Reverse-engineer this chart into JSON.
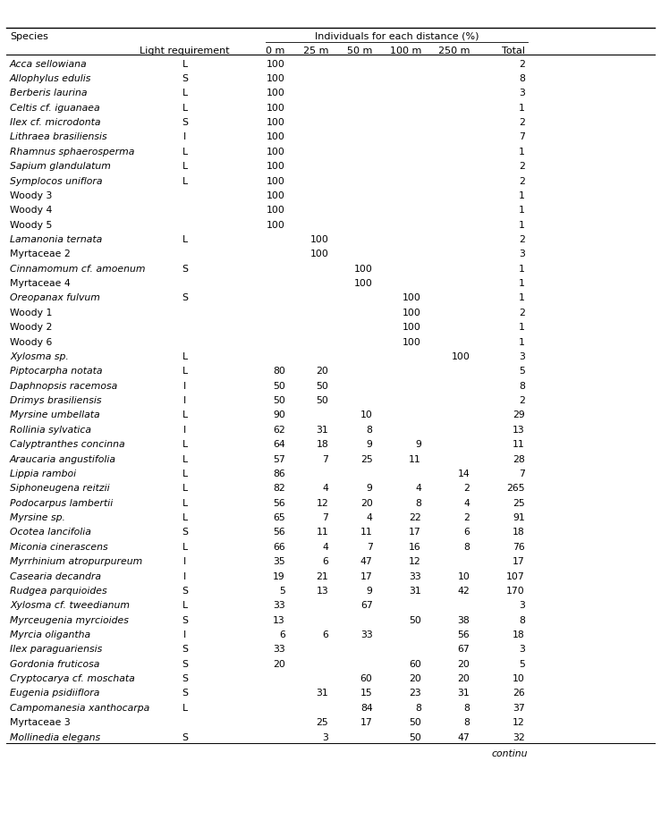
{
  "rows": [
    [
      "Acca sellowiana",
      "L",
      "100",
      "",
      "",
      "",
      "",
      "2"
    ],
    [
      "Allophylus edulis",
      "S",
      "100",
      "",
      "",
      "",
      "",
      "8"
    ],
    [
      "Berberis laurina",
      "L",
      "100",
      "",
      "",
      "",
      "",
      "3"
    ],
    [
      "Celtis cf. iguanaea",
      "L",
      "100",
      "",
      "",
      "",
      "",
      "1"
    ],
    [
      "Ilex cf. microdonta",
      "S",
      "100",
      "",
      "",
      "",
      "",
      "2"
    ],
    [
      "Lithraea brasiliensis",
      "I",
      "100",
      "",
      "",
      "",
      "",
      "7"
    ],
    [
      "Rhamnus sphaerosperma",
      "L",
      "100",
      "",
      "",
      "",
      "",
      "1"
    ],
    [
      "Sapium glandulatum",
      "L",
      "100",
      "",
      "",
      "",
      "",
      "2"
    ],
    [
      "Symplocos uniflora",
      "L",
      "100",
      "",
      "",
      "",
      "",
      "2"
    ],
    [
      "Woody 3",
      "",
      "100",
      "",
      "",
      "",
      "",
      "1"
    ],
    [
      "Woody 4",
      "",
      "100",
      "",
      "",
      "",
      "",
      "1"
    ],
    [
      "Woody 5",
      "",
      "100",
      "",
      "",
      "",
      "",
      "1"
    ],
    [
      "Lamanonia ternata",
      "L",
      "",
      "100",
      "",
      "",
      "",
      "2"
    ],
    [
      "Myrtaceae 2",
      "",
      "",
      "100",
      "",
      "",
      "",
      "3"
    ],
    [
      "Cinnamomum cf. amoenum",
      "S",
      "",
      "",
      "100",
      "",
      "",
      "1"
    ],
    [
      "Myrtaceae 4",
      "",
      "",
      "",
      "100",
      "",
      "",
      "1"
    ],
    [
      "Oreopanax fulvum",
      "S",
      "",
      "",
      "",
      "100",
      "",
      "1"
    ],
    [
      "Woody 1",
      "",
      "",
      "",
      "",
      "100",
      "",
      "2"
    ],
    [
      "Woody 2",
      "",
      "",
      "",
      "",
      "100",
      "",
      "1"
    ],
    [
      "Woody 6",
      "",
      "",
      "",
      "",
      "100",
      "",
      "1"
    ],
    [
      "Xylosma sp.",
      "L",
      "",
      "",
      "",
      "",
      "100",
      "3"
    ],
    [
      "Piptocarpha notata",
      "L",
      "80",
      "20",
      "",
      "",
      "",
      "5"
    ],
    [
      "Daphnopsis racemosa",
      "I",
      "50",
      "50",
      "",
      "",
      "",
      "8"
    ],
    [
      "Drimys brasiliensis",
      "I",
      "50",
      "50",
      "",
      "",
      "",
      "2"
    ],
    [
      "Myrsine umbellata",
      "L",
      "90",
      "",
      "10",
      "",
      "",
      "29"
    ],
    [
      "Rollinia sylvatica",
      "I",
      "62",
      "31",
      "8",
      "",
      "",
      "13"
    ],
    [
      "Calyptranthes concinna",
      "L",
      "64",
      "18",
      "9",
      "9",
      "",
      "11"
    ],
    [
      "Araucaria angustifolia",
      "L",
      "57",
      "7",
      "25",
      "11",
      "",
      "28"
    ],
    [
      "Lippia ramboi",
      "L",
      "86",
      "",
      "",
      "",
      "14",
      "7"
    ],
    [
      "Siphoneugena reitzii",
      "L",
      "82",
      "4",
      "9",
      "4",
      "2",
      "265"
    ],
    [
      "Podocarpus lambertii",
      "L",
      "56",
      "12",
      "20",
      "8",
      "4",
      "25"
    ],
    [
      "Myrsine sp.",
      "L",
      "65",
      "7",
      "4",
      "22",
      "2",
      "91"
    ],
    [
      "Ocotea lancifolia",
      "S",
      "56",
      "11",
      "11",
      "17",
      "6",
      "18"
    ],
    [
      "Miconia cinerascens",
      "L",
      "66",
      "4",
      "7",
      "16",
      "8",
      "76"
    ],
    [
      "Myrrhinium atropurpureum",
      "I",
      "35",
      "6",
      "47",
      "12",
      "",
      "17"
    ],
    [
      "Casearia decandra",
      "I",
      "19",
      "21",
      "17",
      "33",
      "10",
      "107"
    ],
    [
      "Rudgea parquioides",
      "S",
      "5",
      "13",
      "9",
      "31",
      "42",
      "170"
    ],
    [
      "Xylosma cf. tweedianum",
      "L",
      "33",
      "",
      "67",
      "",
      "",
      "3"
    ],
    [
      "Myrceugenia myrcioides",
      "S",
      "13",
      "",
      "",
      "50",
      "38",
      "8"
    ],
    [
      "Myrcia oligantha",
      "I",
      "6",
      "6",
      "33",
      "",
      "56",
      "18"
    ],
    [
      "Ilex paraguariensis",
      "S",
      "33",
      "",
      "",
      "",
      "67",
      "3"
    ],
    [
      "Gordonia fruticosa",
      "S",
      "20",
      "",
      "",
      "60",
      "20",
      "5"
    ],
    [
      "Cryptocarya cf. moschata",
      "S",
      "",
      "",
      "60",
      "20",
      "20",
      "10"
    ],
    [
      "Eugenia psidiiflora",
      "S",
      "",
      "31",
      "15",
      "23",
      "31",
      "26"
    ],
    [
      "Campomanesia xanthocarpa",
      "L",
      "",
      "",
      "84",
      "8",
      "8",
      "37"
    ],
    [
      "Myrtaceae 3",
      "",
      "",
      "25",
      "17",
      "50",
      "8",
      "12"
    ],
    [
      "Mollinedia elegans",
      "S",
      "",
      "3",
      "",
      "50",
      "47",
      "32"
    ]
  ],
  "italic_species": [
    "Acca sellowiana",
    "Allophylus edulis",
    "Berberis laurina",
    "Celtis cf. iguanaea",
    "Ilex cf. microdonta",
    "Lithraea brasiliensis",
    "Rhamnus sphaerosperma",
    "Sapium glandulatum",
    "Symplocos uniflora",
    "Lamanonia ternata",
    "Cinnamomum cf. amoenum",
    "Oreopanax fulvum",
    "Xylosma sp.",
    "Piptocarpha notata",
    "Daphnopsis racemosa",
    "Drimys brasiliensis",
    "Myrsine umbellata",
    "Rollinia sylvatica",
    "Calyptranthes concinna",
    "Araucaria angustifolia",
    "Lippia ramboi",
    "Siphoneugena reitzii",
    "Podocarpus lambertii",
    "Myrsine sp.",
    "Ocotea lancifolia",
    "Miconia cinerascens",
    "Myrrhinium atropurpureum",
    "Casearia decandra",
    "Rudgea parquioides",
    "Xylosma cf. tweedianum",
    "Myrceugenia myrcioides",
    "Myrcia oligantha",
    "Ilex paraguariensis",
    "Gordonia fruticosa",
    "Cryptocarya cf. moschata",
    "Eugenia psidiiflora",
    "Campomanesia xanthocarpa",
    "Mollinedia elegans"
  ],
  "footer": "continu",
  "bg_color": "#ffffff",
  "text_color": "#000000"
}
